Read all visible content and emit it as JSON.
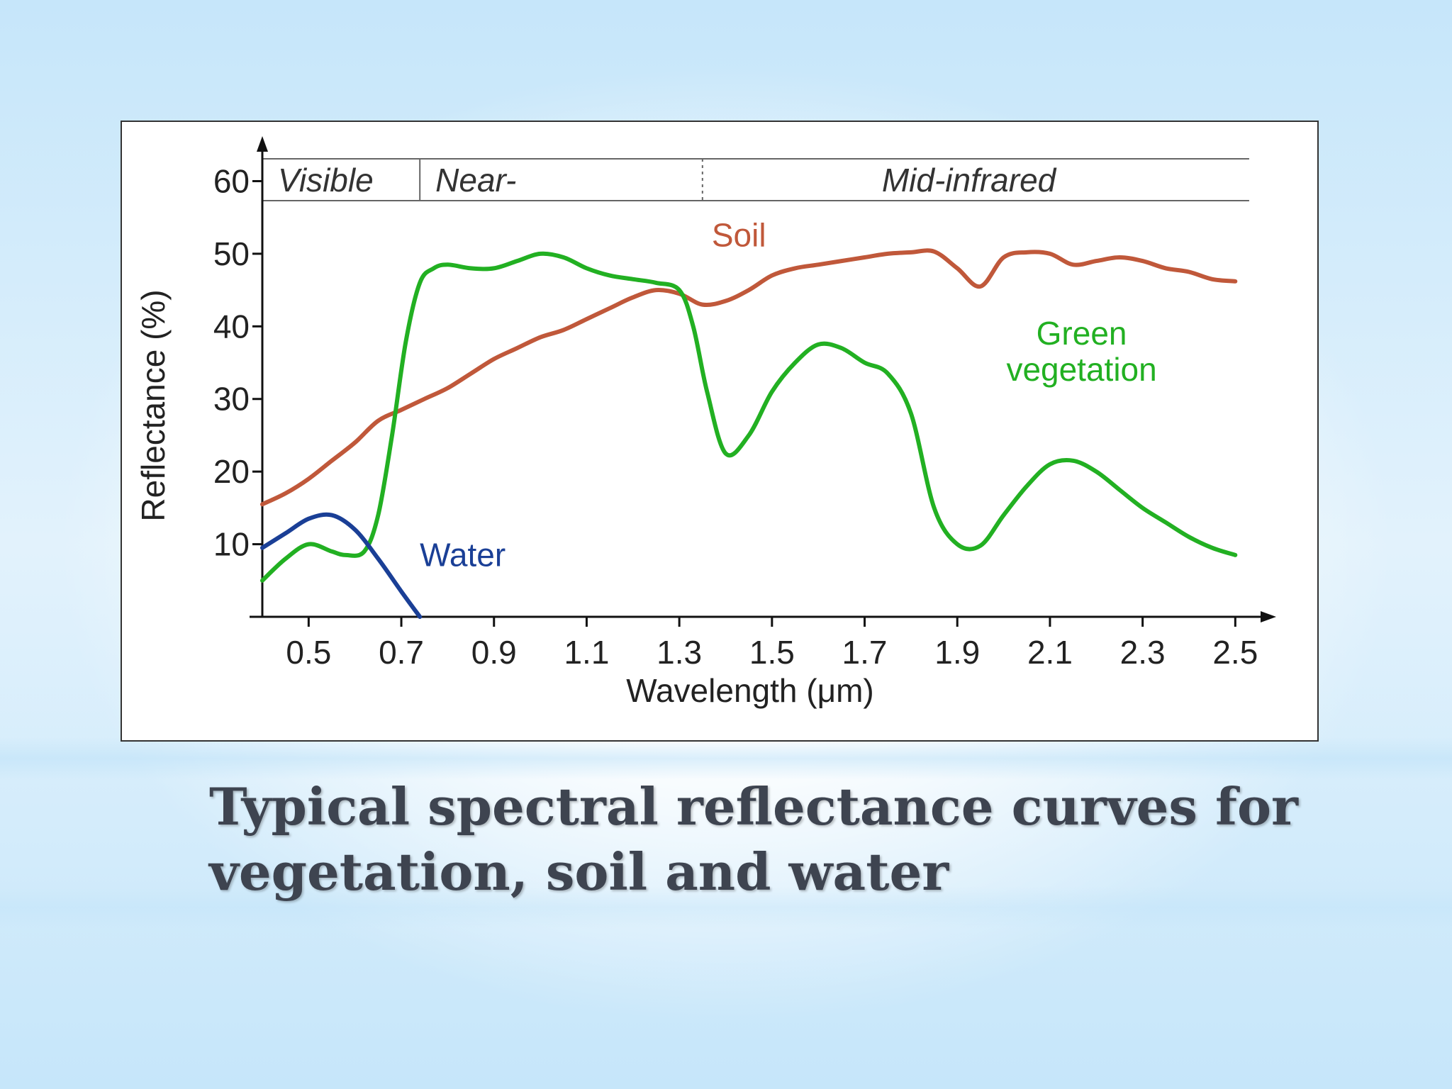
{
  "slide": {
    "title_line1": "Typical spectral reflectance curves for",
    "title_line2": "vegetation, soil and water"
  },
  "chart_data": {
    "type": "line",
    "xlabel": "Wavelength (μm)",
    "ylabel": "Reflectance (%)",
    "xlim": [
      0.4,
      2.55
    ],
    "ylim": [
      0,
      62
    ],
    "x_ticks": [
      "0.5",
      "0.7",
      "0.9",
      "1.1",
      "1.3",
      "1.5",
      "1.7",
      "1.9",
      "2.1",
      "2.3",
      "2.5"
    ],
    "y_ticks": [
      "10",
      "20",
      "30",
      "40",
      "50",
      "60"
    ],
    "regions": [
      {
        "label": "Visible",
        "from": 0.4,
        "to": 0.74
      },
      {
        "label": "Near-",
        "from": 0.74,
        "to": 1.35
      },
      {
        "label": "Mid-infrared",
        "from": 1.35,
        "to": 2.5
      }
    ],
    "series": [
      {
        "name": "Soil",
        "color": "#c0583a",
        "label_at": [
          1.37,
          51.0
        ],
        "x": [
          0.4,
          0.45,
          0.5,
          0.55,
          0.6,
          0.65,
          0.7,
          0.75,
          0.8,
          0.85,
          0.9,
          0.95,
          1.0,
          1.05,
          1.1,
          1.15,
          1.2,
          1.25,
          1.3,
          1.35,
          1.4,
          1.45,
          1.5,
          1.55,
          1.6,
          1.65,
          1.7,
          1.75,
          1.8,
          1.85,
          1.9,
          1.95,
          2.0,
          2.05,
          2.1,
          2.15,
          2.2,
          2.25,
          2.3,
          2.35,
          2.4,
          2.45,
          2.5
        ],
        "y": [
          15.5,
          17,
          19,
          21.5,
          24,
          27,
          28.5,
          30,
          31.5,
          33.5,
          35.5,
          37,
          38.5,
          39.5,
          41,
          42.5,
          44,
          45,
          44.5,
          43,
          43.5,
          45,
          47,
          48,
          48.5,
          49,
          49.5,
          50,
          50.2,
          50.3,
          48,
          45.5,
          49.5,
          50.2,
          50,
          48.5,
          49,
          49.5,
          49,
          48,
          47.5,
          46.5,
          46.2
        ]
      },
      {
        "name": "Green vegetation",
        "label_line1": "Green",
        "label_line2": "vegetation",
        "color": "#22b022",
        "label_at": [
          2.0,
          37.5
        ],
        "x": [
          0.4,
          0.45,
          0.5,
          0.55,
          0.58,
          0.62,
          0.65,
          0.68,
          0.71,
          0.74,
          0.77,
          0.8,
          0.85,
          0.9,
          0.95,
          1.0,
          1.05,
          1.1,
          1.15,
          1.2,
          1.25,
          1.3,
          1.33,
          1.36,
          1.4,
          1.45,
          1.5,
          1.55,
          1.6,
          1.65,
          1.7,
          1.75,
          1.8,
          1.85,
          1.9,
          1.95,
          2.0,
          2.05,
          2.1,
          2.15,
          2.2,
          2.25,
          2.3,
          2.35,
          2.4,
          2.45,
          2.5
        ],
        "y": [
          5,
          8,
          10,
          9,
          8.5,
          9,
          14,
          25,
          38,
          46,
          48,
          48.5,
          48,
          48,
          49,
          50,
          49.5,
          48,
          47,
          46.5,
          46,
          45,
          40,
          31,
          22.5,
          25,
          31,
          35,
          37.5,
          37,
          35,
          33.5,
          28,
          15,
          10,
          9.8,
          14,
          18,
          21,
          21.5,
          20,
          17.5,
          15,
          13,
          11,
          9.5,
          8.5
        ]
      },
      {
        "name": "Water",
        "color": "#1a3f96",
        "label_at": [
          0.74,
          7.0
        ],
        "x": [
          0.4,
          0.45,
          0.5,
          0.55,
          0.6,
          0.65,
          0.7,
          0.74
        ],
        "y": [
          9.5,
          11.5,
          13.5,
          14,
          12,
          8,
          3.5,
          0
        ]
      }
    ]
  }
}
